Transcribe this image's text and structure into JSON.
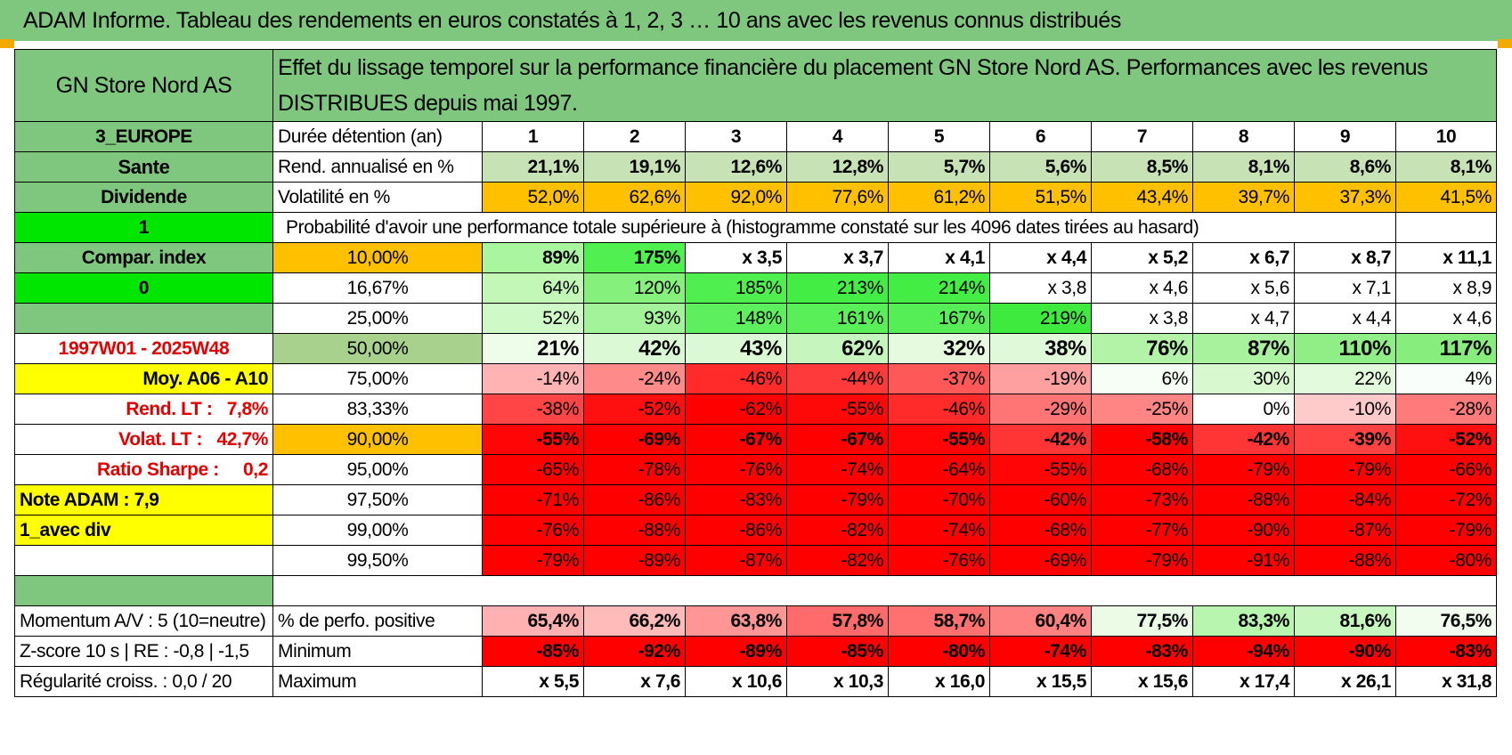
{
  "banner": "ADAM Informe. Tableau des rendements en euros constatés à 1, 2, 3 … 10 ans avec les revenus connus distribués",
  "header": {
    "name": "GN Store Nord AS",
    "description": "Effet du lissage temporel sur la performance financière du placement GN Store Nord AS. Performances avec les revenus DISTRIBUES depuis mai 1997."
  },
  "side": {
    "region": "3_EUROPE",
    "sector": "Sante",
    "type": "Dividende",
    "flag1": "1",
    "compar_label": "Compar. index",
    "flag2": "0",
    "period": "1997W01 - 2025W48",
    "moy": "Moy. A06 - A10",
    "rend_lt_label": "Rend. LT :",
    "rend_lt_value": "7,8%",
    "volat_lt_label": "Volat. LT :",
    "volat_lt_value": "42,7%",
    "sharpe_label": "Ratio Sharpe :",
    "sharpe_value": "0,2",
    "note": "Note ADAM : 7,9",
    "mode": "1_avec div",
    "momentum": "Momentum A/V : 5 (10=neutre)",
    "zscore": "Z-score 10 s | RE : -0,8 | -1,5",
    "regularite": "Régularité croiss. : 0,0 / 20"
  },
  "labels": {
    "duree": "Durée détention (an)",
    "rend": "Rend. annualisé en %",
    "vol": "Volatilité en %",
    "prob": "Probabilité d'avoir une performance totale supérieure à (histogramme constaté sur les 4096 dates tirées au hasard)",
    "pos": "% de perfo. positive",
    "min": "Minimum",
    "max": "Maximum"
  },
  "years": [
    "1",
    "2",
    "3",
    "4",
    "5",
    "6",
    "7",
    "8",
    "9",
    "10"
  ],
  "rend": [
    "21,1%",
    "19,1%",
    "12,6%",
    "12,8%",
    "5,7%",
    "5,6%",
    "8,5%",
    "8,1%",
    "8,6%",
    "8,1%"
  ],
  "vol": [
    "52,0%",
    "62,6%",
    "92,0%",
    "77,6%",
    "61,2%",
    "51,5%",
    "43,4%",
    "39,7%",
    "37,3%",
    "41,5%"
  ],
  "quantiles": [
    {
      "label": "10,00%",
      "values": [
        "89%",
        "175%",
        "x 3,5",
        "x 3,7",
        "x 4,1",
        "x 4,4",
        "x 5,2",
        "x 6,7",
        "x 8,7",
        "x 11,1"
      ],
      "colors": [
        "#a9f5a0",
        "#4ff04f",
        "#ffffff",
        "#ffffff",
        "#ffffff",
        "#ffffff",
        "#ffffff",
        "#ffffff",
        "#ffffff",
        "#ffffff"
      ]
    },
    {
      "label": "16,67%",
      "values": [
        "64%",
        "120%",
        "185%",
        "213%",
        "214%",
        "x 3,8",
        "x 4,6",
        "x 5,6",
        "x 7,1",
        "x 8,9"
      ],
      "colors": [
        "#c2f7b8",
        "#86f07c",
        "#4fef4f",
        "#43ed43",
        "#43ed43",
        "#ffffff",
        "#ffffff",
        "#ffffff",
        "#ffffff",
        "#ffffff"
      ]
    },
    {
      "label": "25,00%",
      "values": [
        "52%",
        "93%",
        "148%",
        "161%",
        "167%",
        "219%",
        "x 3,8",
        "x 4,7",
        "x 4,4",
        "x 4,6"
      ],
      "colors": [
        "#d0f9c8",
        "#a3f39a",
        "#5def5d",
        "#58ef58",
        "#56ee56",
        "#3dea3d",
        "#ffffff",
        "#ffffff",
        "#ffffff",
        "#ffffff"
      ]
    },
    {
      "label": "50,00%",
      "values": [
        "21%",
        "42%",
        "43%",
        "62%",
        "32%",
        "38%",
        "76%",
        "87%",
        "110%",
        "117%"
      ],
      "colors": [
        "#eefcea",
        "#dcf9d5",
        "#dbf9d4",
        "#c6f6bd",
        "#e6fadf",
        "#e0f9d9",
        "#b2f3a8",
        "#a8f29d",
        "#8fef86",
        "#87ee7e"
      ]
    },
    {
      "label": "75,00%",
      "values": [
        "-14%",
        "-24%",
        "-46%",
        "-44%",
        "-37%",
        "-19%",
        "6%",
        "30%",
        "22%",
        "4%"
      ],
      "colors": [
        "#ffb3b3",
        "#ff8a8a",
        "#ff2a2a",
        "#ff3a3a",
        "#ff5858",
        "#ffa0a0",
        "#f7fef5",
        "#d8f8cf",
        "#e4faDd",
        "#fafefa"
      ]
    },
    {
      "label": "83,33%",
      "values": [
        "-38%",
        "-52%",
        "-62%",
        "-55%",
        "-46%",
        "-29%",
        "-25%",
        "0%",
        "-10%",
        "-28%"
      ],
      "colors": [
        "#ff4545",
        "#ff1010",
        "#ff0000",
        "#ff0808",
        "#ff2a2a",
        "#ff7575",
        "#ff8585",
        "#ffffff",
        "#ffcaca",
        "#ff7a7a"
      ]
    },
    {
      "label": "90,00%",
      "values": [
        "-55%",
        "-69%",
        "-67%",
        "-67%",
        "-55%",
        "-42%",
        "-58%",
        "-42%",
        "-39%",
        "-52%"
      ],
      "colors": [
        "#ff0505",
        "#ff0000",
        "#ff0000",
        "#ff0000",
        "#ff0505",
        "#ff3535",
        "#ff0000",
        "#ff3535",
        "#ff4242",
        "#ff1010"
      ]
    },
    {
      "label": "95,00%",
      "values": [
        "-65%",
        "-78%",
        "-76%",
        "-74%",
        "-64%",
        "-55%",
        "-68%",
        "-79%",
        "-79%",
        "-66%"
      ],
      "colors": [
        "#ff0000",
        "#ff0000",
        "#ff0000",
        "#ff0000",
        "#ff0000",
        "#ff0505",
        "#ff0000",
        "#ff0000",
        "#ff0000",
        "#ff0000"
      ]
    },
    {
      "label": "97,50%",
      "values": [
        "-71%",
        "-86%",
        "-83%",
        "-79%",
        "-70%",
        "-60%",
        "-73%",
        "-88%",
        "-84%",
        "-72%"
      ],
      "colors": [
        "#ff0000",
        "#ff0000",
        "#ff0000",
        "#ff0000",
        "#ff0000",
        "#ff0000",
        "#ff0000",
        "#ff0000",
        "#ff0000",
        "#ff0000"
      ]
    },
    {
      "label": "99,00%",
      "values": [
        "-76%",
        "-88%",
        "-86%",
        "-82%",
        "-74%",
        "-68%",
        "-77%",
        "-90%",
        "-87%",
        "-79%"
      ],
      "colors": [
        "#ff0000",
        "#ff0000",
        "#ff0000",
        "#ff0000",
        "#ff0000",
        "#ff0000",
        "#ff0000",
        "#ff0000",
        "#ff0000",
        "#ff0000"
      ]
    },
    {
      "label": "99,50%",
      "values": [
        "-79%",
        "-89%",
        "-87%",
        "-82%",
        "-76%",
        "-69%",
        "-79%",
        "-91%",
        "-88%",
        "-80%"
      ],
      "colors": [
        "#ff0000",
        "#ff0000",
        "#ff0000",
        "#ff0000",
        "#ff0000",
        "#ff0000",
        "#ff0000",
        "#ff0000",
        "#ff0000",
        "#ff0000"
      ]
    }
  ],
  "positive": {
    "values": [
      "65,4%",
      "66,2%",
      "63,8%",
      "57,8%",
      "58,7%",
      "60,4%",
      "77,5%",
      "83,3%",
      "81,6%",
      "76,5%"
    ],
    "colors": [
      "#ffb0b0",
      "#ffbaba",
      "#ff9595",
      "#ff6a6a",
      "#ff7070",
      "#ff8282",
      "#ebfbe6",
      "#b8f5ae",
      "#c7f7bf",
      "#f2fdef"
    ]
  },
  "minimum": [
    "-85%",
    "-92%",
    "-89%",
    "-85%",
    "-80%",
    "-74%",
    "-83%",
    "-94%",
    "-90%",
    "-83%"
  ],
  "maximum": [
    "x 5,5",
    "x 7,6",
    "x 10,6",
    "x 10,3",
    "x 16,0",
    "x 15,5",
    "x 15,6",
    "x 17,4",
    "x 26,1",
    "x 31,8"
  ],
  "colors": {
    "banner": "#7fc77f",
    "green": "#7fc77f",
    "orange": "#ffc000",
    "yellow": "#ffff00",
    "red": "#ff0000",
    "label_red": "#e00000"
  }
}
